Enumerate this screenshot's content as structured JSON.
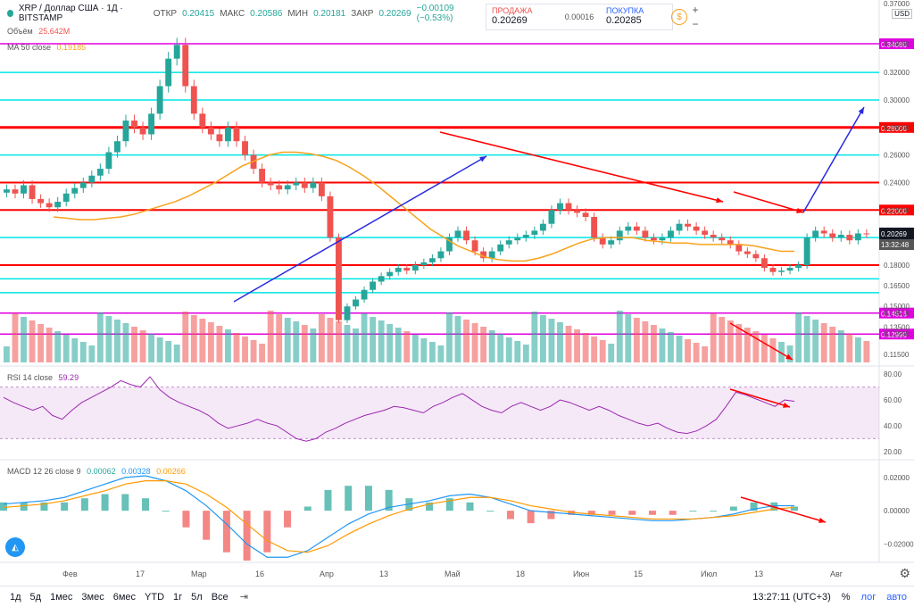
{
  "header": {
    "symbol": "XRP / Доллар США · 1Д · BITSTAMP",
    "open_label": "ОТКР",
    "open_value": "0.20415",
    "high_label": "МАКС",
    "high_value": "0.20586",
    "low_label": "МИН",
    "low_value": "0.20181",
    "close_label": "ЗАКР",
    "close_value": "0.20269",
    "change": "−0.00109 (−0.53%)",
    "volume_label": "Объём",
    "volume_value": "25.642M",
    "ma_label": "MA 50 close",
    "ma_value": "0.19185"
  },
  "trade_panel": {
    "sell_label": "ПРОДАЖА",
    "sell_value": "0.20269",
    "spread": "0.00016",
    "buy_label": "ПОКУПКА",
    "buy_value": "0.20285",
    "currency": "USD"
  },
  "rsi": {
    "label": "RSI 14 close",
    "value": "59.29"
  },
  "macd": {
    "label": "MACD 12 26 close 9",
    "v1": "0.00062",
    "v2": "0.00328",
    "v3": "0.00266"
  },
  "bottom_bar": {
    "timeframes": [
      "1д",
      "5д",
      "1мес",
      "3мес",
      "6мес",
      "YTD",
      "1г",
      "5л",
      "Все"
    ],
    "time": "13:27:11 (UTC+3)",
    "percent": "%",
    "log": "лог",
    "auto": "авто"
  },
  "colors": {
    "up": "#26a69a",
    "down": "#ef5350",
    "ma": "#f7a21b",
    "rsi": "#9c27b0",
    "macd": "#2196f3",
    "signal": "#ff9800",
    "red_level": "#ff0000",
    "magenta_level": "#e000e0",
    "cyan_level": "#00e5e5",
    "arrow_blue": "#2a2ae0"
  },
  "chart_data": [
    {
      "type": "candlestick",
      "title": "XRP / Доллар США · 1Д · BITSTAMP",
      "x_ticks": [
        "Фев",
        "17",
        "Мар",
        "16",
        "Апр",
        "13",
        "Май",
        "18",
        "Июн",
        "15",
        "Июл",
        "13",
        "Авг"
      ],
      "y_ticks": [
        "0.37000",
        "0.34080",
        "0.32000",
        "0.30000",
        "0.28000",
        "0.26000",
        "0.24000",
        "0.22000",
        "0.20269",
        "0.18000",
        "0.16500",
        "0.15000",
        "0.14516",
        "0.13500",
        "0.12990",
        "0.11500"
      ],
      "ylim": [
        0.108,
        0.37
      ],
      "last_price": 0.20269,
      "countdown": "13:32:48",
      "horizontal_levels": [
        {
          "price": 0.3408,
          "color": "magenta",
          "label": "0.34080"
        },
        {
          "price": 0.32,
          "color": "cyan"
        },
        {
          "price": 0.3,
          "color": "cyan"
        },
        {
          "price": 0.28,
          "color": "red",
          "label": "0.28000"
        },
        {
          "price": 0.26,
          "color": "cyan"
        },
        {
          "price": 0.24,
          "color": "red"
        },
        {
          "price": 0.22,
          "color": "red",
          "label": "0.22000"
        },
        {
          "price": 0.2,
          "color": "cyan"
        },
        {
          "price": 0.18,
          "color": "red"
        },
        {
          "price": 0.17,
          "color": "cyan"
        },
        {
          "price": 0.16,
          "color": "cyan"
        },
        {
          "price": 0.14516,
          "color": "magenta",
          "label": "0.14516"
        },
        {
          "price": 0.1299,
          "color": "magenta",
          "label": "0.12990"
        }
      ],
      "closes": [
        0.235,
        0.232,
        0.238,
        0.228,
        0.225,
        0.222,
        0.226,
        0.232,
        0.236,
        0.24,
        0.245,
        0.25,
        0.262,
        0.27,
        0.285,
        0.28,
        0.275,
        0.29,
        0.31,
        0.33,
        0.34,
        0.31,
        0.29,
        0.28,
        0.275,
        0.27,
        0.28,
        0.27,
        0.26,
        0.25,
        0.24,
        0.238,
        0.235,
        0.238,
        0.24,
        0.236,
        0.24,
        0.23,
        0.2,
        0.14,
        0.15,
        0.155,
        0.162,
        0.168,
        0.172,
        0.175,
        0.178,
        0.176,
        0.18,
        0.182,
        0.185,
        0.19,
        0.2,
        0.205,
        0.198,
        0.19,
        0.185,
        0.19,
        0.195,
        0.198,
        0.2,
        0.202,
        0.205,
        0.21,
        0.22,
        0.225,
        0.22,
        0.218,
        0.215,
        0.2,
        0.195,
        0.198,
        0.205,
        0.208,
        0.205,
        0.2,
        0.198,
        0.2,
        0.205,
        0.21,
        0.208,
        0.205,
        0.202,
        0.2,
        0.198,
        0.195,
        0.19,
        0.188,
        0.185,
        0.178,
        0.175,
        0.176,
        0.178,
        0.18,
        0.2,
        0.205,
        0.203,
        0.2,
        0.202,
        0.198,
        0.203,
        0.2027
      ],
      "ma50": [
        0.215,
        0.214,
        0.213,
        0.213,
        0.214,
        0.215,
        0.217,
        0.22,
        0.223,
        0.226,
        0.23,
        0.235,
        0.24,
        0.246,
        0.252,
        0.256,
        0.26,
        0.262,
        0.262,
        0.261,
        0.259,
        0.256,
        0.251,
        0.245,
        0.238,
        0.23,
        0.222,
        0.214,
        0.206,
        0.2,
        0.194,
        0.19,
        0.186,
        0.184,
        0.183,
        0.183,
        0.185,
        0.188,
        0.192,
        0.196,
        0.199,
        0.2,
        0.2,
        0.2,
        0.198,
        0.197,
        0.196,
        0.196,
        0.195,
        0.195,
        0.195,
        0.195,
        0.194,
        0.192,
        0.19,
        0.19
      ],
      "volume_label": "Объём",
      "volume_value": "25.642M"
    },
    {
      "type": "line",
      "title": "RSI 14 close",
      "y_ticks": [
        "80.00",
        "60.00",
        "40.00",
        "20.00"
      ],
      "ylim": [
        15,
        85
      ],
      "band": [
        30,
        70
      ],
      "values": [
        62,
        58,
        55,
        52,
        55,
        48,
        45,
        52,
        58,
        62,
        66,
        70,
        75,
        72,
        70,
        78,
        68,
        62,
        58,
        55,
        52,
        48,
        42,
        38,
        40,
        42,
        45,
        42,
        40,
        35,
        30,
        28,
        30,
        35,
        38,
        42,
        45,
        48,
        50,
        52,
        55,
        54,
        52,
        50,
        55,
        58,
        62,
        65,
        60,
        55,
        52,
        50,
        55,
        58,
        55,
        52,
        55,
        60,
        58,
        55,
        52,
        55,
        52,
        48,
        45,
        42,
        40,
        42,
        38,
        35,
        34,
        36,
        40,
        45,
        55,
        66,
        64,
        61,
        58,
        55,
        60,
        59
      ]
    },
    {
      "type": "line",
      "title": "MACD 12 26 close 9",
      "y_ticks": [
        "0.02000",
        "0.00000",
        "−0.02000"
      ],
      "ylim": [
        -0.03,
        0.028
      ],
      "series": [
        {
          "name": "MACD",
          "values": [
            0.004,
            0.005,
            0.006,
            0.008,
            0.012,
            0.016,
            0.02,
            0.021,
            0.018,
            0.012,
            0.003,
            -0.008,
            -0.02,
            -0.028,
            -0.028,
            -0.024,
            -0.016,
            -0.008,
            -0.002,
            0.002,
            0.004,
            0.006,
            0.009,
            0.01,
            0.008,
            0.004,
            0,
            -0.001,
            -0.002,
            -0.003,
            -0.004,
            -0.005,
            -0.006,
            -0.006,
            -0.005,
            -0.004,
            -0.002,
            0.001,
            0.003,
            0.003
          ]
        },
        {
          "name": "Signal",
          "values": [
            0.002,
            0.003,
            0.004,
            0.006,
            0.009,
            0.012,
            0.016,
            0.018,
            0.018,
            0.016,
            0.01,
            0.002,
            -0.008,
            -0.018,
            -0.024,
            -0.025,
            -0.021,
            -0.014,
            -0.008,
            -0.003,
            0.001,
            0.004,
            0.006,
            0.008,
            0.008,
            0.006,
            0.003,
            0.001,
            -0.001,
            -0.002,
            -0.003,
            -0.004,
            -0.005,
            -0.005,
            -0.005,
            -0.004,
            -0.003,
            -0.001,
            0.001,
            0.002
          ]
        }
      ]
    }
  ]
}
